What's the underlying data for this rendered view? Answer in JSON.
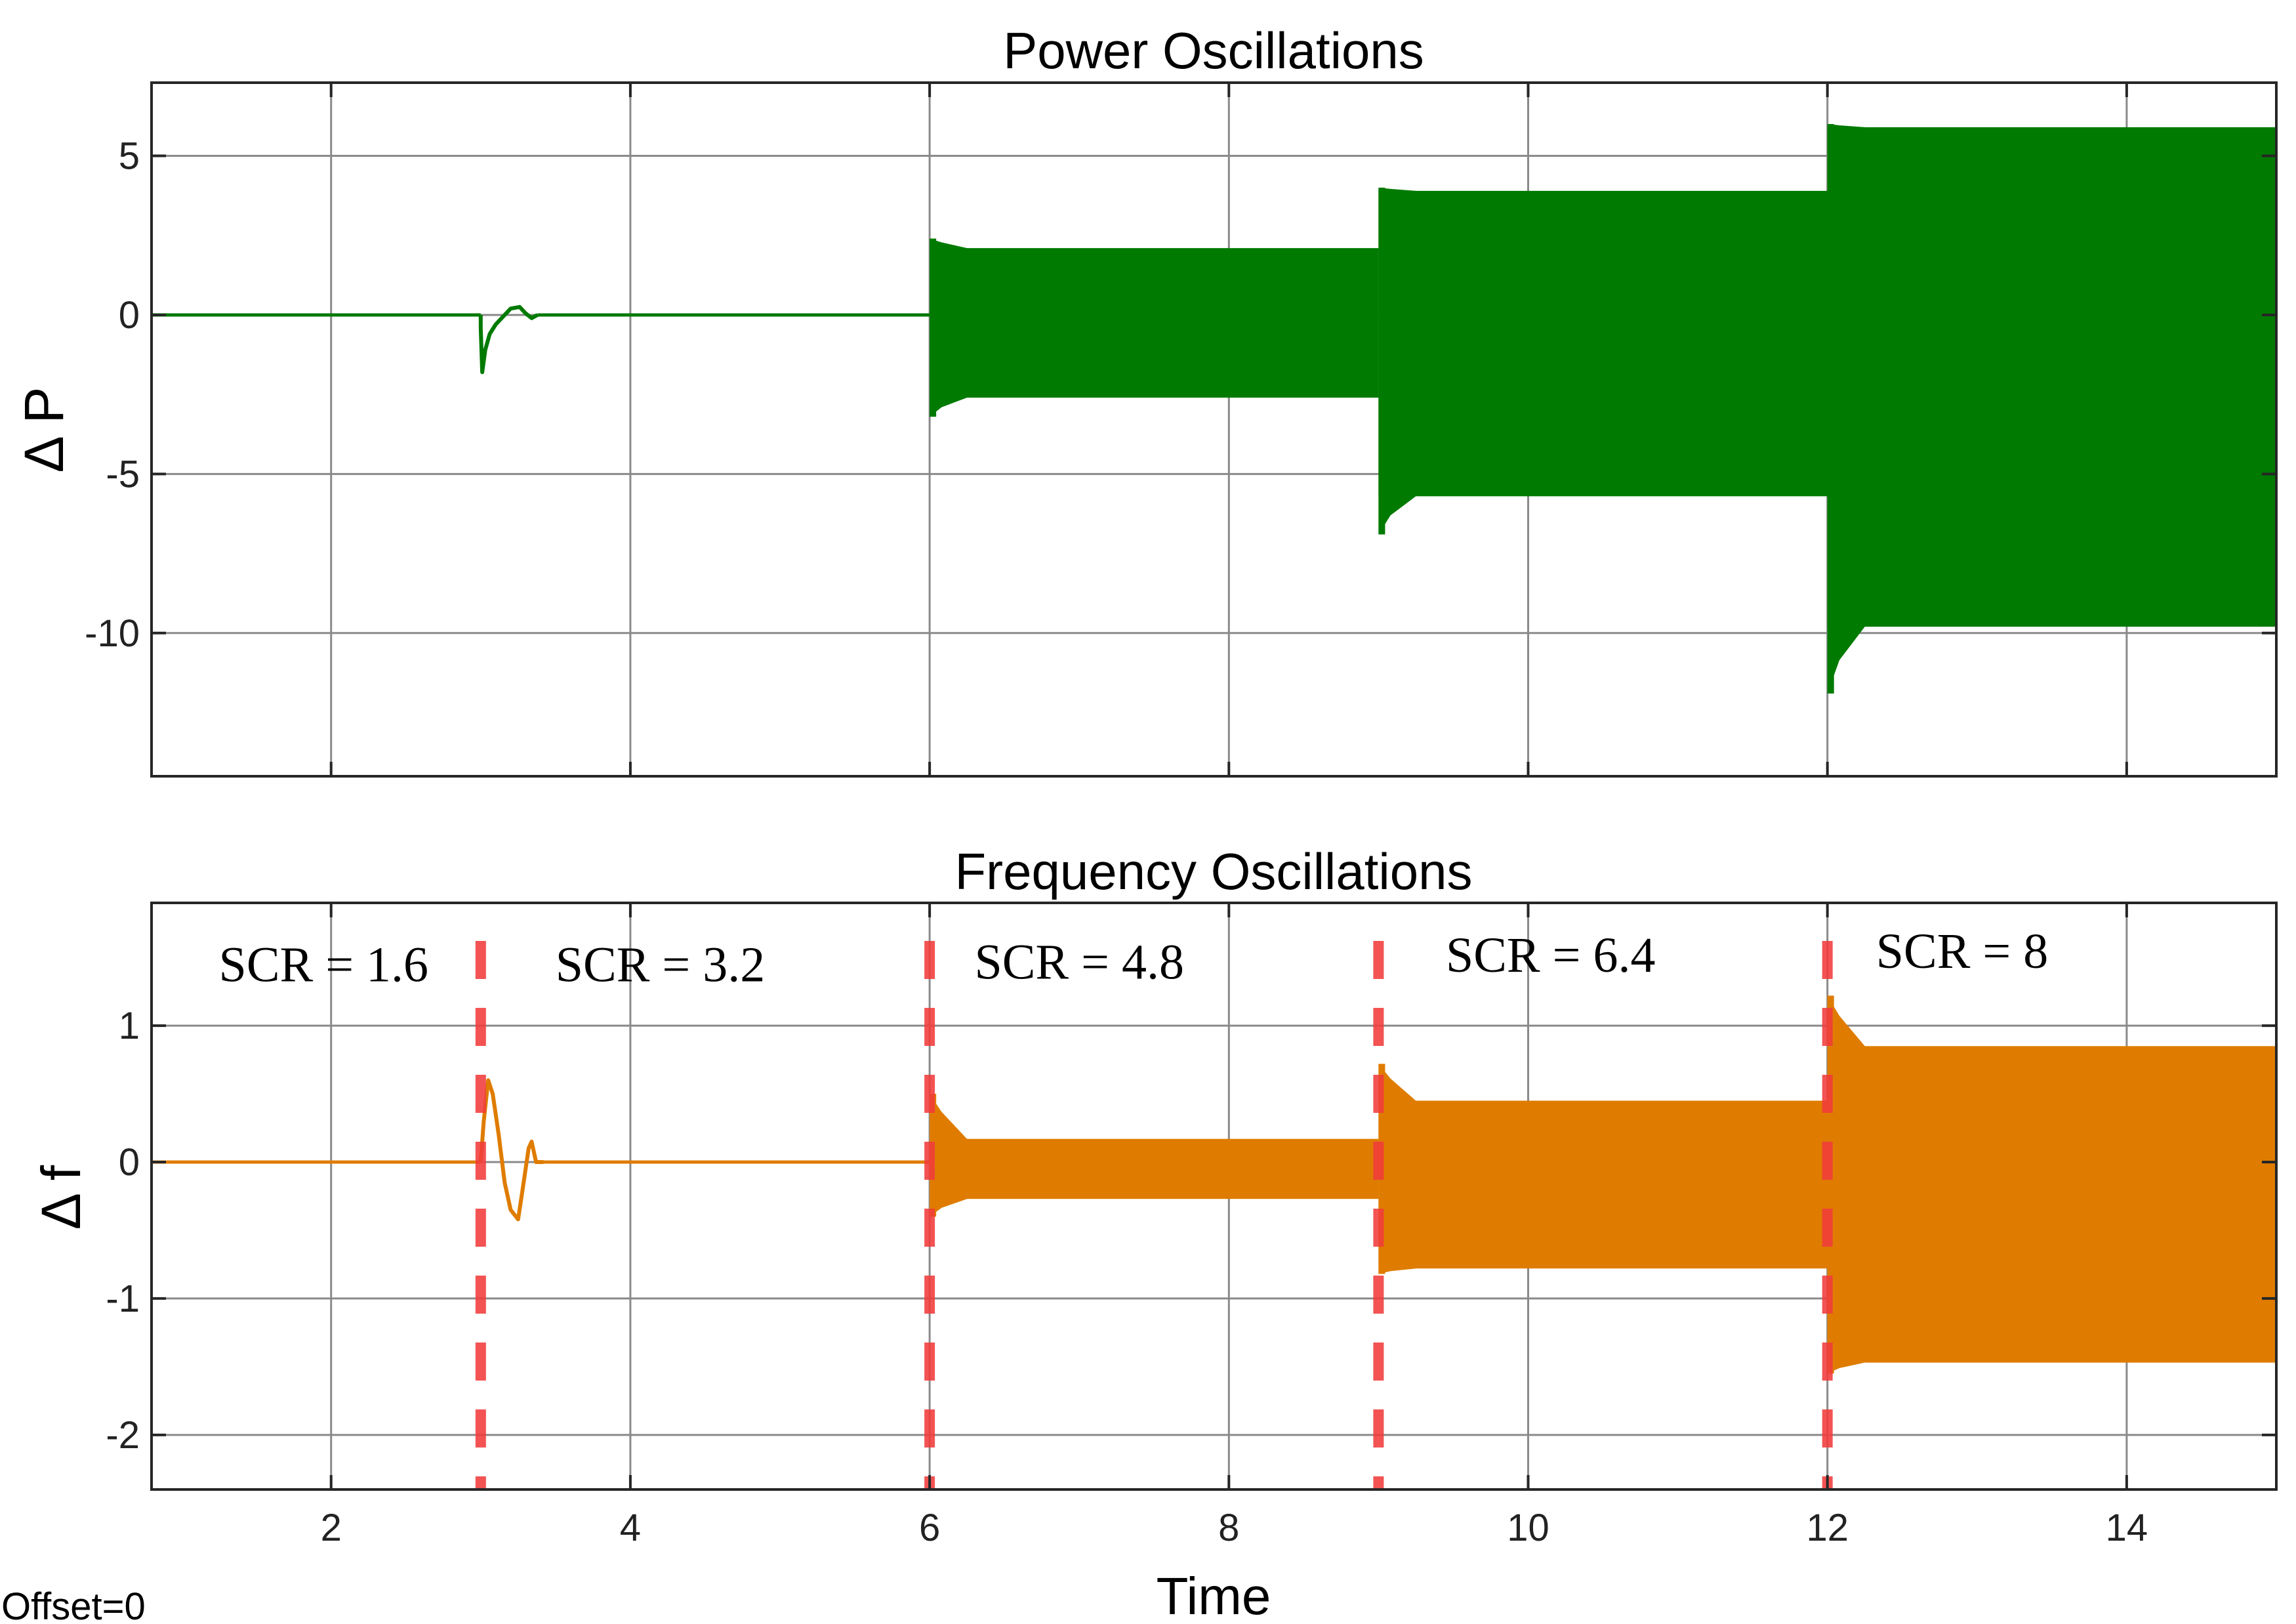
{
  "footer": {
    "offset_text": "Offset=0"
  },
  "chart_data": [
    {
      "type": "line",
      "title": "Power Oscillations",
      "xlabel": "",
      "ylabel": "Δ P",
      "xlim": [
        0.8,
        15
      ],
      "ylim": [
        -14.5,
        7.3
      ],
      "xticks": [
        2,
        4,
        6,
        8,
        10,
        12,
        14
      ],
      "yticks": [
        5,
        0,
        -5,
        -10
      ],
      "ytick_labels": [
        "5",
        "0",
        "-5",
        "-10"
      ],
      "grid": true,
      "series": [
        {
          "name": "ΔP",
          "color": "#007a00",
          "baseline": 0,
          "transient": {
            "t": 3.0,
            "points": [
              [
                3.0,
                0
              ],
              [
                3.0,
                -0.4
              ],
              [
                3.01,
                -1.8
              ],
              [
                3.03,
                -1.1
              ],
              [
                3.06,
                -0.6
              ],
              [
                3.1,
                -0.3
              ],
              [
                3.15,
                -0.05
              ],
              [
                3.2,
                0.2
              ],
              [
                3.26,
                0.25
              ],
              [
                3.3,
                0.05
              ],
              [
                3.34,
                -0.1
              ],
              [
                3.38,
                0.0
              ]
            ]
          },
          "bands": [
            {
              "t_start": 6.0,
              "t_end": 9.0,
              "upper": 2.1,
              "lower": -2.6,
              "spike_max": 2.4,
              "spike_min": -3.2
            },
            {
              "t_start": 9.0,
              "t_end": 12.0,
              "upper": 3.9,
              "lower": -5.7,
              "spike_max": 4.0,
              "spike_min": -6.9
            },
            {
              "t_start": 12.0,
              "t_end": 15.0,
              "upper": 5.9,
              "lower": -9.8,
              "spike_max": 6.0,
              "spike_min": -11.9
            }
          ]
        }
      ]
    },
    {
      "type": "line",
      "title": "Frequency Oscillations",
      "xlabel": "Time",
      "ylabel": "Δ f",
      "xlim": [
        0.8,
        15
      ],
      "ylim": [
        -2.4,
        1.9
      ],
      "xticks": [
        2,
        4,
        6,
        8,
        10,
        12,
        14
      ],
      "xtick_labels": [
        "2",
        "4",
        "6",
        "8",
        "10",
        "12",
        "14"
      ],
      "yticks": [
        1,
        0,
        -1,
        -2
      ],
      "ytick_labels": [
        "1",
        "0",
        "-1",
        "-2"
      ],
      "grid": true,
      "series": [
        {
          "name": "Δf",
          "color": "#df7c00",
          "baseline": 0,
          "transient": {
            "t": 3.0,
            "points": [
              [
                3.0,
                0
              ],
              [
                3.02,
                0.3
              ],
              [
                3.05,
                0.6
              ],
              [
                3.08,
                0.5
              ],
              [
                3.12,
                0.2
              ],
              [
                3.16,
                -0.15
              ],
              [
                3.2,
                -0.35
              ],
              [
                3.25,
                -0.42
              ],
              [
                3.28,
                -0.2
              ],
              [
                3.32,
                0.1
              ],
              [
                3.34,
                0.15
              ],
              [
                3.37,
                0.0
              ],
              [
                3.42,
                0.0
              ]
            ]
          },
          "bands": [
            {
              "t_start": 6.0,
              "t_end": 9.0,
              "upper": 0.17,
              "lower": -0.27,
              "spike_max": 0.5,
              "spike_min": -0.4
            },
            {
              "t_start": 9.0,
              "t_end": 12.0,
              "upper": 0.45,
              "lower": -0.78,
              "spike_max": 0.72,
              "spike_min": -0.82
            },
            {
              "t_start": 12.0,
              "t_end": 15.0,
              "upper": 0.85,
              "lower": -1.47,
              "spike_max": 1.22,
              "spike_min": -1.55
            }
          ]
        }
      ],
      "event_lines": [
        3,
        6,
        9,
        12
      ],
      "event_line_color": "#f23c3c",
      "annotations": [
        {
          "text": "SCR = 1.6",
          "x": 1.95,
          "y": 1.45
        },
        {
          "text": "SCR = 3.2",
          "x": 4.2,
          "y": 1.45
        },
        {
          "text": "SCR = 4.8",
          "x": 7.0,
          "y": 1.47
        },
        {
          "text": "SCR = 6.4",
          "x": 10.15,
          "y": 1.52
        },
        {
          "text": "SCR = 8",
          "x": 12.9,
          "y": 1.55
        }
      ]
    }
  ]
}
